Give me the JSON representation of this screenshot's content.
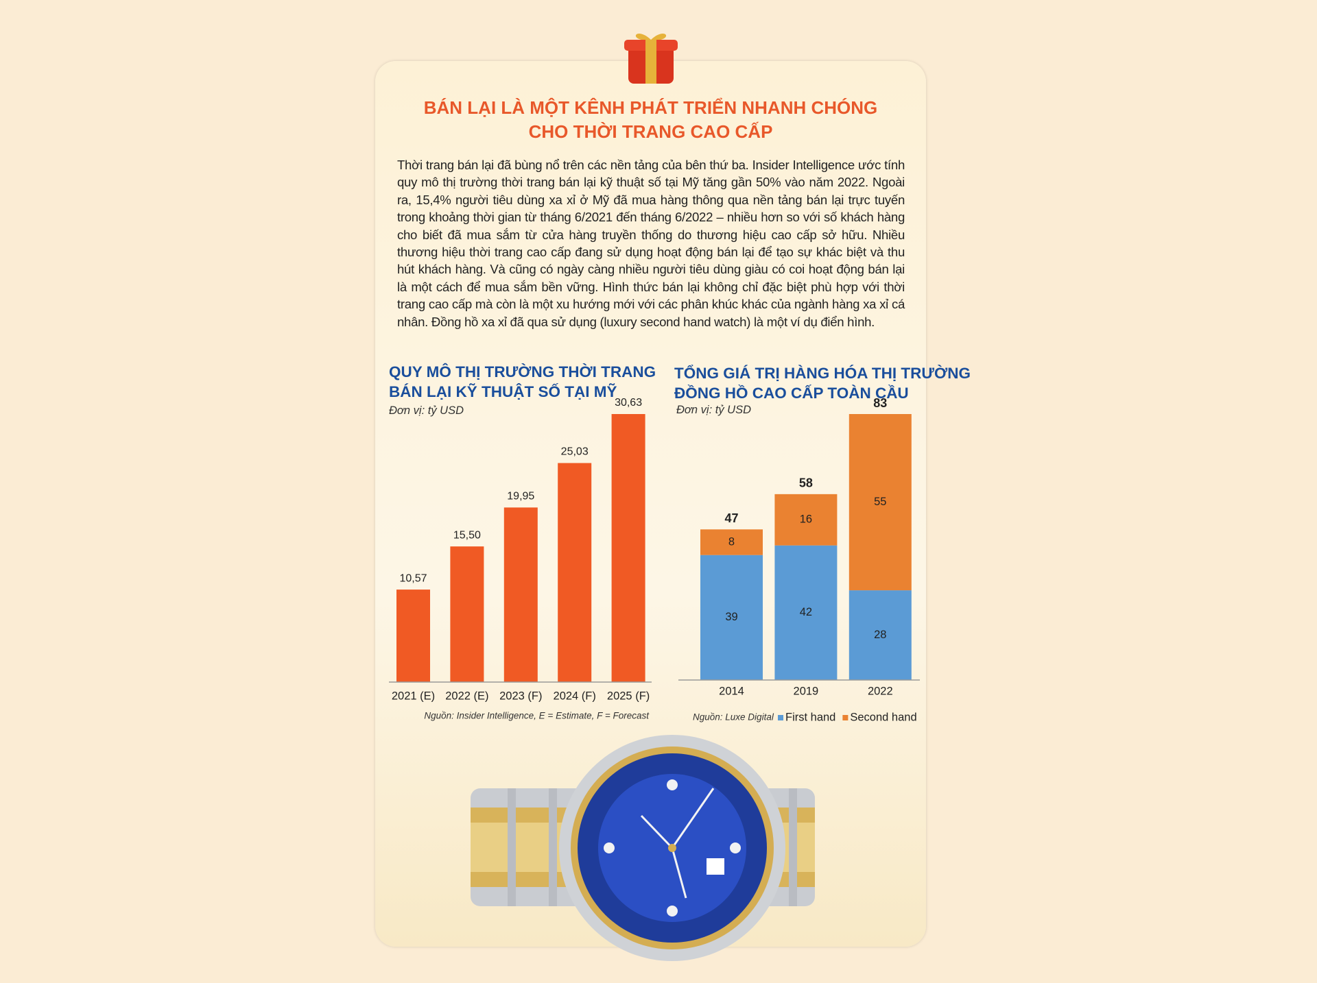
{
  "title": [
    "BÁN LẠI LÀ MỘT KÊNH PHÁT TRIỂN NHANH CHÓNG",
    "CHO THỜI TRANG CAO CẤP"
  ],
  "body": "Thời trang bán lại đã bùng nổ trên các nền tảng của bên thứ ba. Insider Intelligence ước tính quy mô thị trường thời trang bán lại kỹ thuật số tại Mỹ tăng gần 50% vào năm 2022. Ngoài ra, 15,4% người tiêu dùng xa xỉ ở Mỹ đã mua hàng thông qua nền tảng bán lại trực tuyến trong khoảng thời gian từ tháng 6/2021 đến tháng 6/2022 – nhiều hơn so với số khách hàng cho biết đã mua sắm từ cửa hàng truyền thống do thương hiệu cao cấp sở hữu. Nhiều thương hiệu thời trang cao cấp đang sử dụng hoạt động bán lại để tạo sự khác biệt và thu hút khách hàng. Và cũng có ngày càng nhiều người tiêu dùng giàu có coi hoạt động bán lại là một cách để mua sắm bền vững. Hình thức bán lại không chỉ đặc biệt phù hợp với thời trang cao cấp mà còn là một xu hướng mới với các phân khúc khác của ngành hàng xa xỉ cá nhân. Đồng hồ xa xỉ đã qua sử dụng (luxury second hand watch) là một ví dụ điển hình.",
  "chart_data": [
    {
      "type": "bar",
      "title": [
        "QUY MÔ THỊ TRƯỜNG THỜI TRANG",
        "BÁN LẠI KỸ THUẬT SỐ TẠI MỸ"
      ],
      "unit": "Đơn vị: tỷ USD",
      "categories": [
        "2021 (E)",
        "2022 (E)",
        "2023 (F)",
        "2024 (F)",
        "2025 (F)"
      ],
      "values": [
        10.57,
        15.5,
        19.95,
        25.03,
        30.63
      ],
      "value_labels": [
        "10,57",
        "15,50",
        "19,95",
        "25,03",
        "30,63"
      ],
      "color": "#f05a24",
      "source": "Nguồn: Insider Intelligence, E = Estimate, F = Forecast"
    },
    {
      "type": "stacked_bar",
      "title": [
        "TỔNG GIÁ TRỊ HÀNG HÓA THỊ TRƯỜNG",
        "ĐỒNG HỒ CAO CẤP TOÀN CẦU"
      ],
      "unit": "Đơn vị: tỷ USD",
      "categories": [
        "2014",
        "2019",
        "2022"
      ],
      "series": [
        {
          "name": "First hand",
          "color": "#5b9bd5",
          "values": [
            39,
            42,
            28
          ]
        },
        {
          "name": "Second hand",
          "color": "#ea8231",
          "values": [
            8,
            16,
            55
          ]
        }
      ],
      "totals": [
        47,
        58,
        83
      ],
      "source": "Nguồn: Luxe Digital"
    }
  ]
}
